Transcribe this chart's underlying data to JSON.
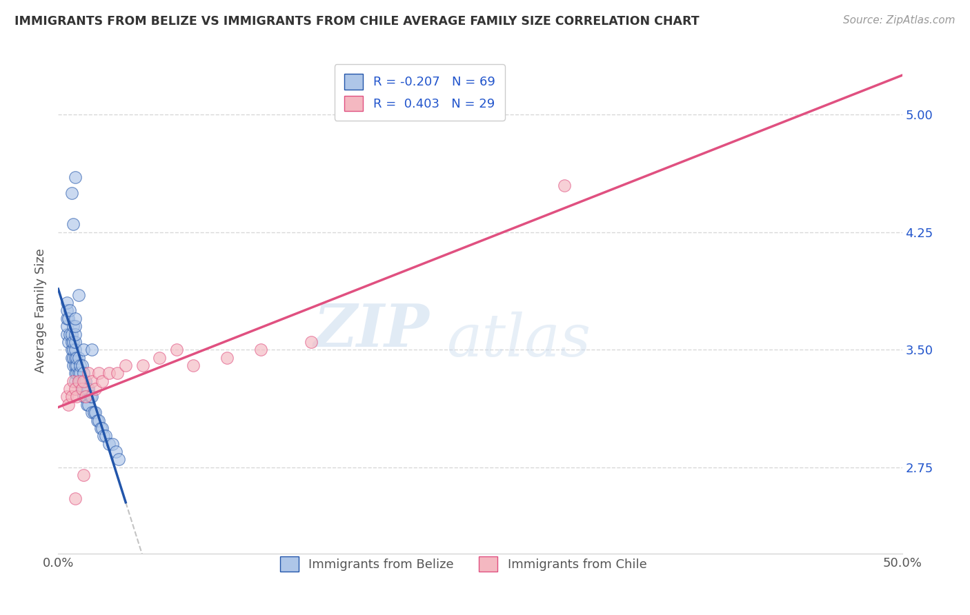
{
  "title": "IMMIGRANTS FROM BELIZE VS IMMIGRANTS FROM CHILE AVERAGE FAMILY SIZE CORRELATION CHART",
  "source": "Source: ZipAtlas.com",
  "ylabel": "Average Family Size",
  "y_ticks": [
    2.75,
    3.5,
    4.25,
    5.0
  ],
  "y_right_labels": [
    "2.75",
    "3.50",
    "4.25",
    "5.00"
  ],
  "xlim": [
    0.0,
    0.5
  ],
  "ylim": [
    2.2,
    5.3
  ],
  "belize_R": "-0.207",
  "belize_N": "69",
  "chile_R": "0.403",
  "chile_N": "29",
  "belize_color": "#aec6e8",
  "belize_line_color": "#2255aa",
  "chile_color": "#f4b8c1",
  "chile_line_color": "#e05080",
  "watermark_zip": "ZIP",
  "watermark_atlas": "atlas",
  "background_color": "#ffffff",
  "grid_color": "#d8d8d8",
  "title_color": "#333333",
  "axis_label_color": "#555555",
  "legend_R_N_color": "#2255cc",
  "belize_x": [
    0.005,
    0.005,
    0.005,
    0.005,
    0.005,
    0.006,
    0.006,
    0.007,
    0.007,
    0.008,
    0.008,
    0.008,
    0.008,
    0.009,
    0.009,
    0.009,
    0.009,
    0.009,
    0.01,
    0.01,
    0.01,
    0.01,
    0.01,
    0.01,
    0.01,
    0.01,
    0.01,
    0.011,
    0.011,
    0.011,
    0.012,
    0.012,
    0.012,
    0.013,
    0.013,
    0.013,
    0.014,
    0.014,
    0.014,
    0.015,
    0.015,
    0.015,
    0.016,
    0.016,
    0.017,
    0.017,
    0.018,
    0.018,
    0.019,
    0.02,
    0.02,
    0.021,
    0.022,
    0.023,
    0.024,
    0.025,
    0.026,
    0.027,
    0.028,
    0.03,
    0.032,
    0.034,
    0.036,
    0.008,
    0.009,
    0.01,
    0.012,
    0.015,
    0.02
  ],
  "belize_y": [
    3.6,
    3.65,
    3.7,
    3.75,
    3.8,
    3.55,
    3.7,
    3.6,
    3.75,
    3.45,
    3.5,
    3.55,
    3.6,
    3.4,
    3.45,
    3.5,
    3.55,
    3.65,
    3.3,
    3.35,
    3.4,
    3.45,
    3.5,
    3.55,
    3.6,
    3.65,
    3.7,
    3.35,
    3.4,
    3.45,
    3.3,
    3.35,
    3.45,
    3.3,
    3.35,
    3.4,
    3.25,
    3.3,
    3.4,
    3.2,
    3.25,
    3.35,
    3.2,
    3.3,
    3.15,
    3.25,
    3.15,
    3.25,
    3.2,
    3.1,
    3.2,
    3.1,
    3.1,
    3.05,
    3.05,
    3.0,
    3.0,
    2.95,
    2.95,
    2.9,
    2.9,
    2.85,
    2.8,
    4.5,
    4.3,
    4.6,
    3.85,
    3.5,
    3.5
  ],
  "chile_x": [
    0.005,
    0.006,
    0.007,
    0.008,
    0.009,
    0.01,
    0.011,
    0.012,
    0.014,
    0.015,
    0.016,
    0.018,
    0.02,
    0.022,
    0.024,
    0.026,
    0.03,
    0.035,
    0.04,
    0.05,
    0.06,
    0.07,
    0.08,
    0.1,
    0.12,
    0.15,
    0.01,
    0.015,
    0.3
  ],
  "chile_y": [
    3.2,
    3.15,
    3.25,
    3.2,
    3.3,
    3.25,
    3.2,
    3.3,
    3.25,
    3.3,
    3.2,
    3.35,
    3.3,
    3.25,
    3.35,
    3.3,
    3.35,
    3.35,
    3.4,
    3.4,
    3.45,
    3.5,
    3.4,
    3.45,
    3.5,
    3.55,
    2.55,
    2.7,
    4.55
  ]
}
